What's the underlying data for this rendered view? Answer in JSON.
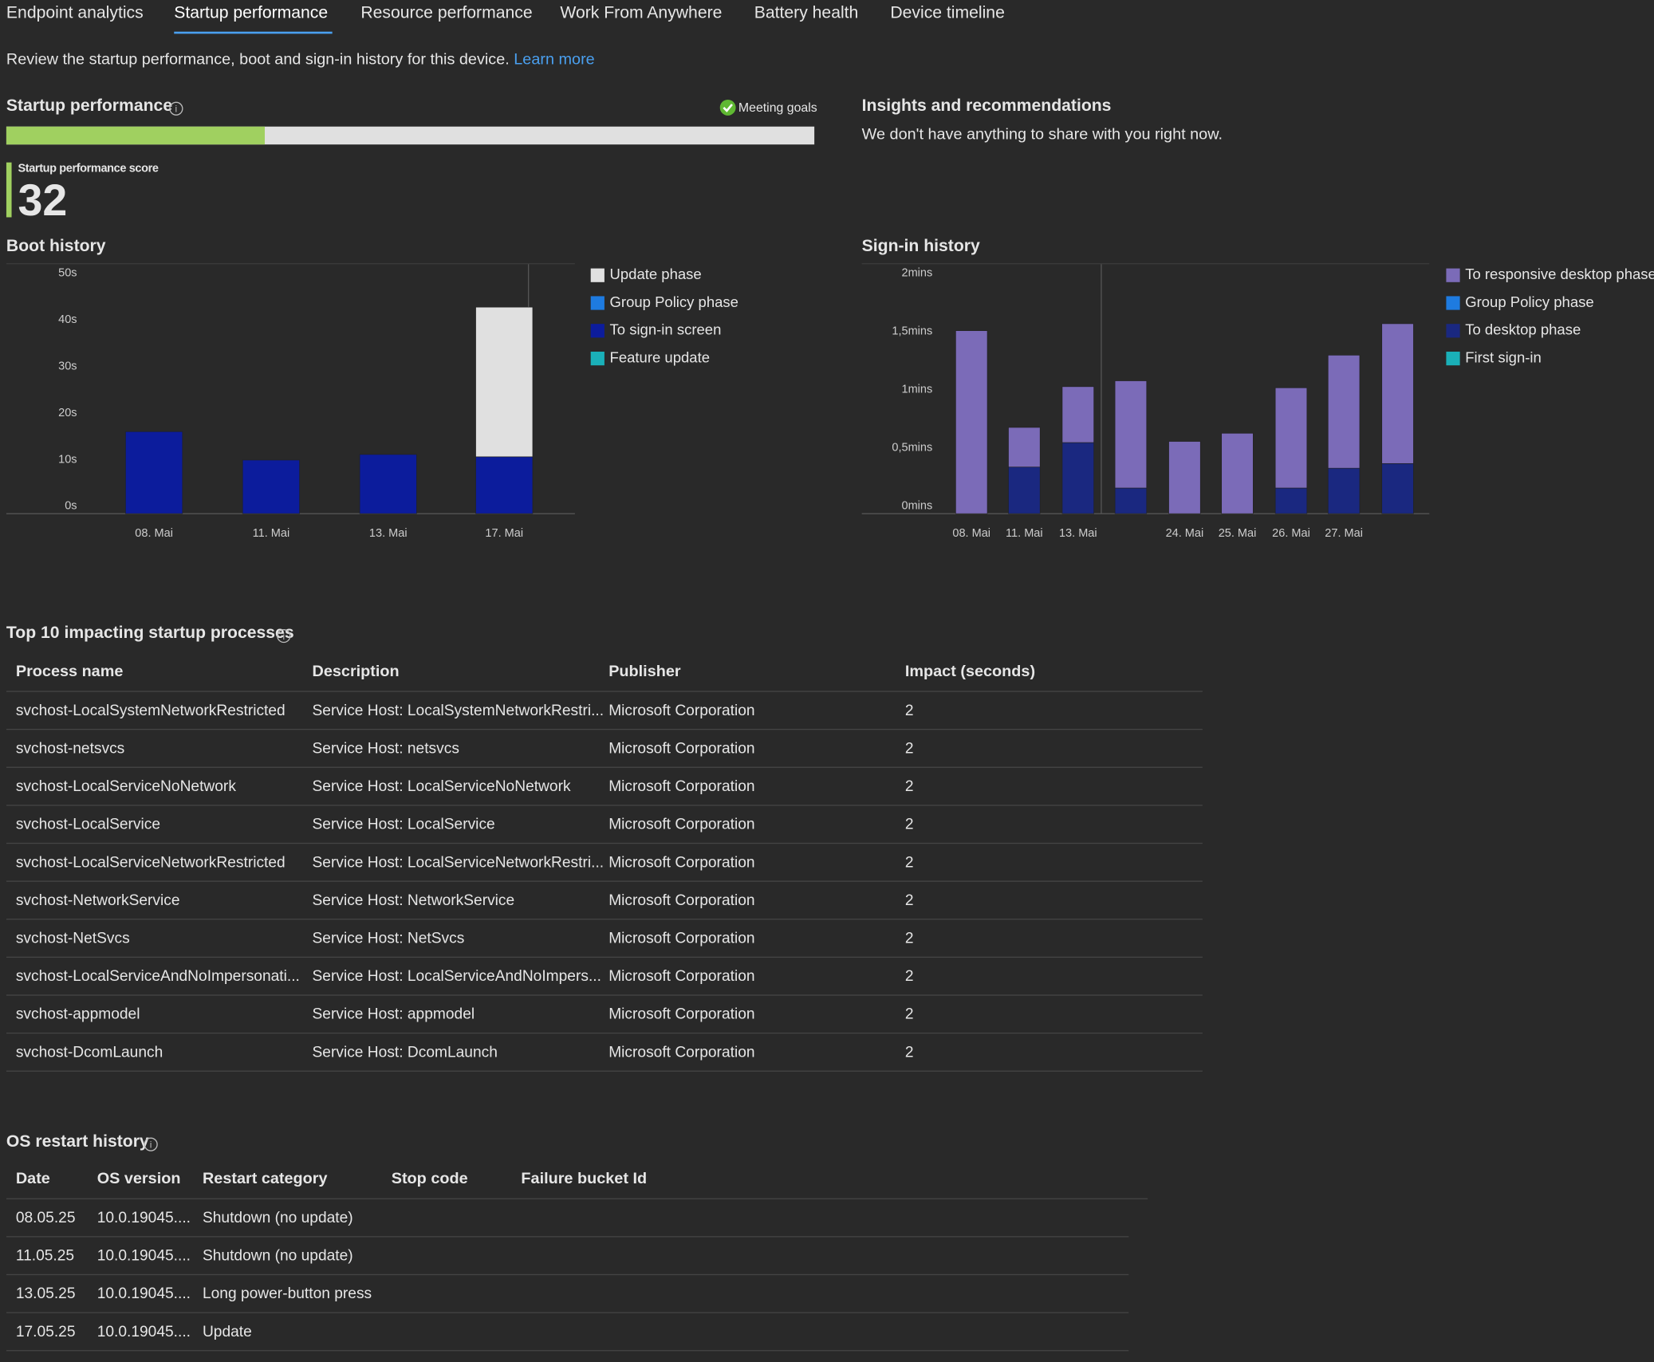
{
  "tabs": [
    "Endpoint analytics",
    "Startup performance",
    "Resource performance",
    "Work From Anywhere",
    "Battery health",
    "Device timeline"
  ],
  "intro": {
    "text": "Review the startup performance, boot and sign-in history for this device.",
    "link": "Learn more"
  },
  "startup": {
    "title": "Startup performance",
    "status": "Meeting goals",
    "score_label": "Startup performance score",
    "score": 32
  },
  "insights": {
    "title": "Insights and recommendations",
    "text": "We don't have anything to share with you right now."
  },
  "boot_history": {
    "type": "bar",
    "title": "Boot history",
    "categories": [
      "08. Mai",
      "11. Mai",
      "13. Mai",
      "17. Mai"
    ],
    "series": [
      {
        "name": "Update phase",
        "color": "#e0e0e0",
        "values": [
          0,
          0,
          0,
          32.1
        ]
      },
      {
        "name": "Group Policy phase",
        "color": "#1e7be0",
        "values": [
          0,
          0,
          0,
          0
        ]
      },
      {
        "name": "To sign-in screen",
        "color": "#0c1c9c",
        "values": [
          17.6,
          11.5,
          12.7,
          12.2
        ]
      },
      {
        "name": "Feature update",
        "color": "#1ab0b8",
        "values": [
          0,
          0,
          0,
          0
        ]
      }
    ],
    "ylim": [
      0,
      50
    ],
    "yticks": [
      {
        "value": 0,
        "label": "0s"
      },
      {
        "value": 10,
        "label": "10s"
      },
      {
        "value": 20,
        "label": "20s"
      },
      {
        "value": 30,
        "label": "30s"
      },
      {
        "value": 40,
        "label": "40s"
      },
      {
        "value": 50,
        "label": "50s"
      }
    ]
  },
  "signin_history": {
    "type": "bar",
    "title": "Sign-in history",
    "categories": [
      "08. Mai",
      "11. Mai",
      "13. Mai",
      null,
      "24. Mai",
      "25. Mai",
      "26. Mai",
      "27. Mai",
      null
    ],
    "series": [
      {
        "name": "To responsive desktop phase",
        "color": "#7b6bb8",
        "values": [
          1.57,
          0.34,
          0.48,
          0.92,
          0.62,
          0.69,
          0.86,
          0.97,
          1.2
        ]
      },
      {
        "name": "Group Policy phase",
        "color": "#1e7be0",
        "values": [
          0,
          0,
          0,
          0,
          0,
          0,
          0,
          0,
          0
        ]
      },
      {
        "name": "To desktop phase",
        "color": "#1a2880",
        "values": [
          0,
          0.4,
          0.61,
          0.22,
          0,
          0,
          0.22,
          0.39,
          0.43
        ]
      },
      {
        "name": "First sign-in",
        "color": "#1ab0b8",
        "values": [
          0,
          0,
          0,
          0,
          0,
          0,
          0,
          0,
          0
        ]
      }
    ],
    "ylim": [
      0,
      2
    ],
    "yticks": [
      {
        "value": 0,
        "label": "0mins"
      },
      {
        "value": 0.5,
        "label": "0,5mins"
      },
      {
        "value": 1,
        "label": "1mins"
      },
      {
        "value": 1.5,
        "label": "1,5mins"
      },
      {
        "value": 2,
        "label": "2mins"
      }
    ]
  },
  "processes": {
    "title": "Top 10 impacting startup processes",
    "columns": [
      "Process name",
      "Description",
      "Publisher",
      "Impact (seconds)"
    ],
    "rows": [
      [
        "svchost-LocalSystemNetworkRestricted",
        "Service Host: LocalSystemNetworkRestri...",
        "Microsoft Corporation",
        2
      ],
      [
        "svchost-netsvcs",
        "Service Host: netsvcs",
        "Microsoft Corporation",
        2
      ],
      [
        "svchost-LocalServiceNoNetwork",
        "Service Host: LocalServiceNoNetwork",
        "Microsoft Corporation",
        2
      ],
      [
        "svchost-LocalService",
        "Service Host: LocalService",
        "Microsoft Corporation",
        2
      ],
      [
        "svchost-LocalServiceNetworkRestricted",
        "Service Host: LocalServiceNetworkRestri...",
        "Microsoft Corporation",
        2
      ],
      [
        "svchost-NetworkService",
        "Service Host: NetworkService",
        "Microsoft Corporation",
        2
      ],
      [
        "svchost-NetSvcs",
        "Service Host: NetSvcs",
        "Microsoft Corporation",
        2
      ],
      [
        "svchost-LocalServiceAndNoImpersonati...",
        "Service Host: LocalServiceAndNoImpers...",
        "Microsoft Corporation",
        2
      ],
      [
        "svchost-appmodel",
        "Service Host: appmodel",
        "Microsoft Corporation",
        2
      ],
      [
        "svchost-DcomLaunch",
        "Service Host: DcomLaunch",
        "Microsoft Corporation",
        2
      ]
    ]
  },
  "restarts": {
    "title": "OS restart history",
    "columns": [
      "Date",
      "OS version",
      "Restart category",
      "Stop code",
      "Failure bucket Id"
    ],
    "rows": [
      [
        "08.05.25",
        "10.0.19045....",
        "Shutdown (no update)"
      ],
      [
        "11.05.25",
        "10.0.19045....",
        "Shutdown (no update)"
      ],
      [
        "13.05.25",
        "10.0.19045....",
        "Long power-button press"
      ],
      [
        "17.05.25",
        "10.0.19045....",
        "Update"
      ]
    ]
  }
}
